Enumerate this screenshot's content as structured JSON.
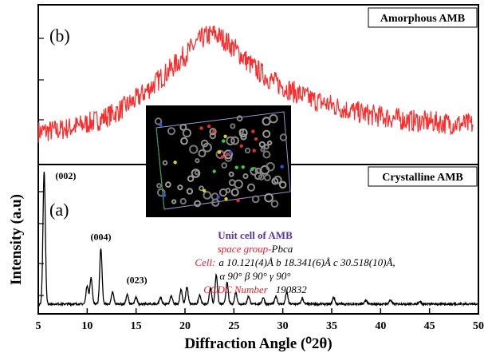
{
  "chart_data": [
    {
      "panel": "(b)",
      "type": "line",
      "title": "Amorphous AMB",
      "xlim": [
        5,
        50
      ],
      "color": "#ff2a2a",
      "series": [
        {
          "x": [
            5,
            7,
            9,
            11,
            13,
            15,
            17,
            19,
            21,
            22,
            23,
            24,
            25,
            27,
            29,
            31,
            33,
            35,
            37,
            39,
            41,
            43,
            45,
            47,
            49.5
          ],
          "y": [
            20,
            21,
            24,
            28,
            34,
            43,
            55,
            68,
            82,
            88,
            90,
            86,
            80,
            66,
            56,
            49,
            43,
            39,
            35,
            32,
            30,
            28,
            27,
            26,
            25
          ]
        }
      ]
    },
    {
      "panel": "(a)",
      "type": "line",
      "title": "Crystalline AMB",
      "xlabel": "Diffraction Angle (⁰2θ)",
      "ylabel": "Intensity (a.u)",
      "xlim": [
        5,
        50
      ],
      "xticks": [
        "5",
        "10",
        "15",
        "20",
        "25",
        "30",
        "35",
        "40",
        "45",
        "50"
      ],
      "color": "#000000",
      "peaks": [
        {
          "x": 5.6,
          "y": 100,
          "label": "(002)"
        },
        {
          "x": 10.0,
          "y": 14
        },
        {
          "x": 10.4,
          "y": 20
        },
        {
          "x": 11.4,
          "y": 42,
          "label": "(004)"
        },
        {
          "x": 12.6,
          "y": 9
        },
        {
          "x": 14.1,
          "y": 7,
          "label": "(023)"
        },
        {
          "x": 15.0,
          "y": 5
        },
        {
          "x": 17.5,
          "y": 5
        },
        {
          "x": 18.6,
          "y": 6
        },
        {
          "x": 19.6,
          "y": 11
        },
        {
          "x": 20.2,
          "y": 13
        },
        {
          "x": 21.5,
          "y": 7
        },
        {
          "x": 22.6,
          "y": 12
        },
        {
          "x": 23.2,
          "y": 22
        },
        {
          "x": 24.3,
          "y": 16
        },
        {
          "x": 25.2,
          "y": 9
        },
        {
          "x": 26.5,
          "y": 6
        },
        {
          "x": 28.0,
          "y": 5
        },
        {
          "x": 29.3,
          "y": 6
        },
        {
          "x": 30.4,
          "y": 9
        },
        {
          "x": 32.0,
          "y": 4
        },
        {
          "x": 35.2,
          "y": 5
        },
        {
          "x": 38.5,
          "y": 3
        },
        {
          "x": 41.0,
          "y": 3
        },
        {
          "x": 44.0,
          "y": 2
        }
      ]
    }
  ],
  "inset": {
    "title": "Unit cell of AMB",
    "space_group_label": "space group-",
    "space_group_value": "Pbca",
    "cell_label": "Cell:",
    "cell_line1": "a 10.121(4)Å b 18.341(6)Å c 30.518(10)Å,",
    "cell_line2": "α 90° β 90° γ 90°",
    "ccdc_label": "CCDC Number",
    "ccdc_value": "190832",
    "title_color": "#5533aa",
    "label_color": "#e8202a"
  }
}
